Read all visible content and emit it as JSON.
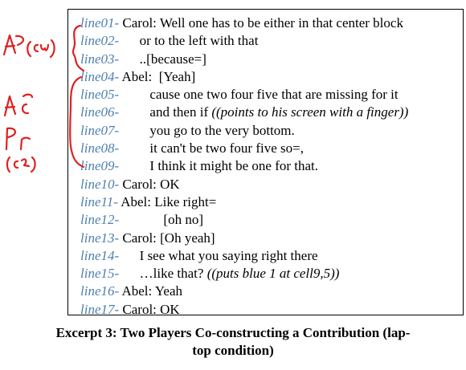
{
  "excerpt": {
    "lines": [
      {
        "id": "line01-",
        "text": " Carol: Well one has to be either in that center block",
        "note": ""
      },
      {
        "id": "line02-",
        "text": "      or to the left with that",
        "note": ""
      },
      {
        "id": "line03-",
        "text": "      ..[because=]",
        "note": ""
      },
      {
        "id": "line04-",
        "text": " Abel:  [Yeah]",
        "note": ""
      },
      {
        "id": "line05-",
        "text": "         cause one two four five that are missing for it",
        "note": ""
      },
      {
        "id": "line06-",
        "text": "         and then if ",
        "note": "((points to his screen with a finger))"
      },
      {
        "id": "line07-",
        "text": "         you go to the very bottom.",
        "note": ""
      },
      {
        "id": "line08-",
        "text": "         it can't be two four five so=,",
        "note": ""
      },
      {
        "id": "line09-",
        "text": "         I think it might be one for that.",
        "note": ""
      },
      {
        "id": "line10-",
        "text": " Carol: OK",
        "note": ""
      },
      {
        "id": "line11-",
        "text": " Abel: Like right=",
        "note": ""
      },
      {
        "id": "line12-",
        "text": "             [oh no]",
        "note": ""
      },
      {
        "id": "line13-",
        "text": " Carol: [Oh yeah]",
        "note": ""
      },
      {
        "id": "line14-",
        "text": "      I see what you saying right there",
        "note": ""
      },
      {
        "id": "line15-",
        "text": "      …like that? ",
        "note": "((puts blue 1 at cell9,5))"
      },
      {
        "id": "line16-",
        "text": " Abel: Yeah",
        "note": ""
      },
      {
        "id": "line17-",
        "text": " Carol: OK",
        "note": ""
      }
    ]
  },
  "caption": {
    "line1": "Excerpt 3: Two Players Co-constructing a Contribution (lap-",
    "line2": "top condition)"
  },
  "annotations": {
    "ink_color": "#e02020"
  }
}
